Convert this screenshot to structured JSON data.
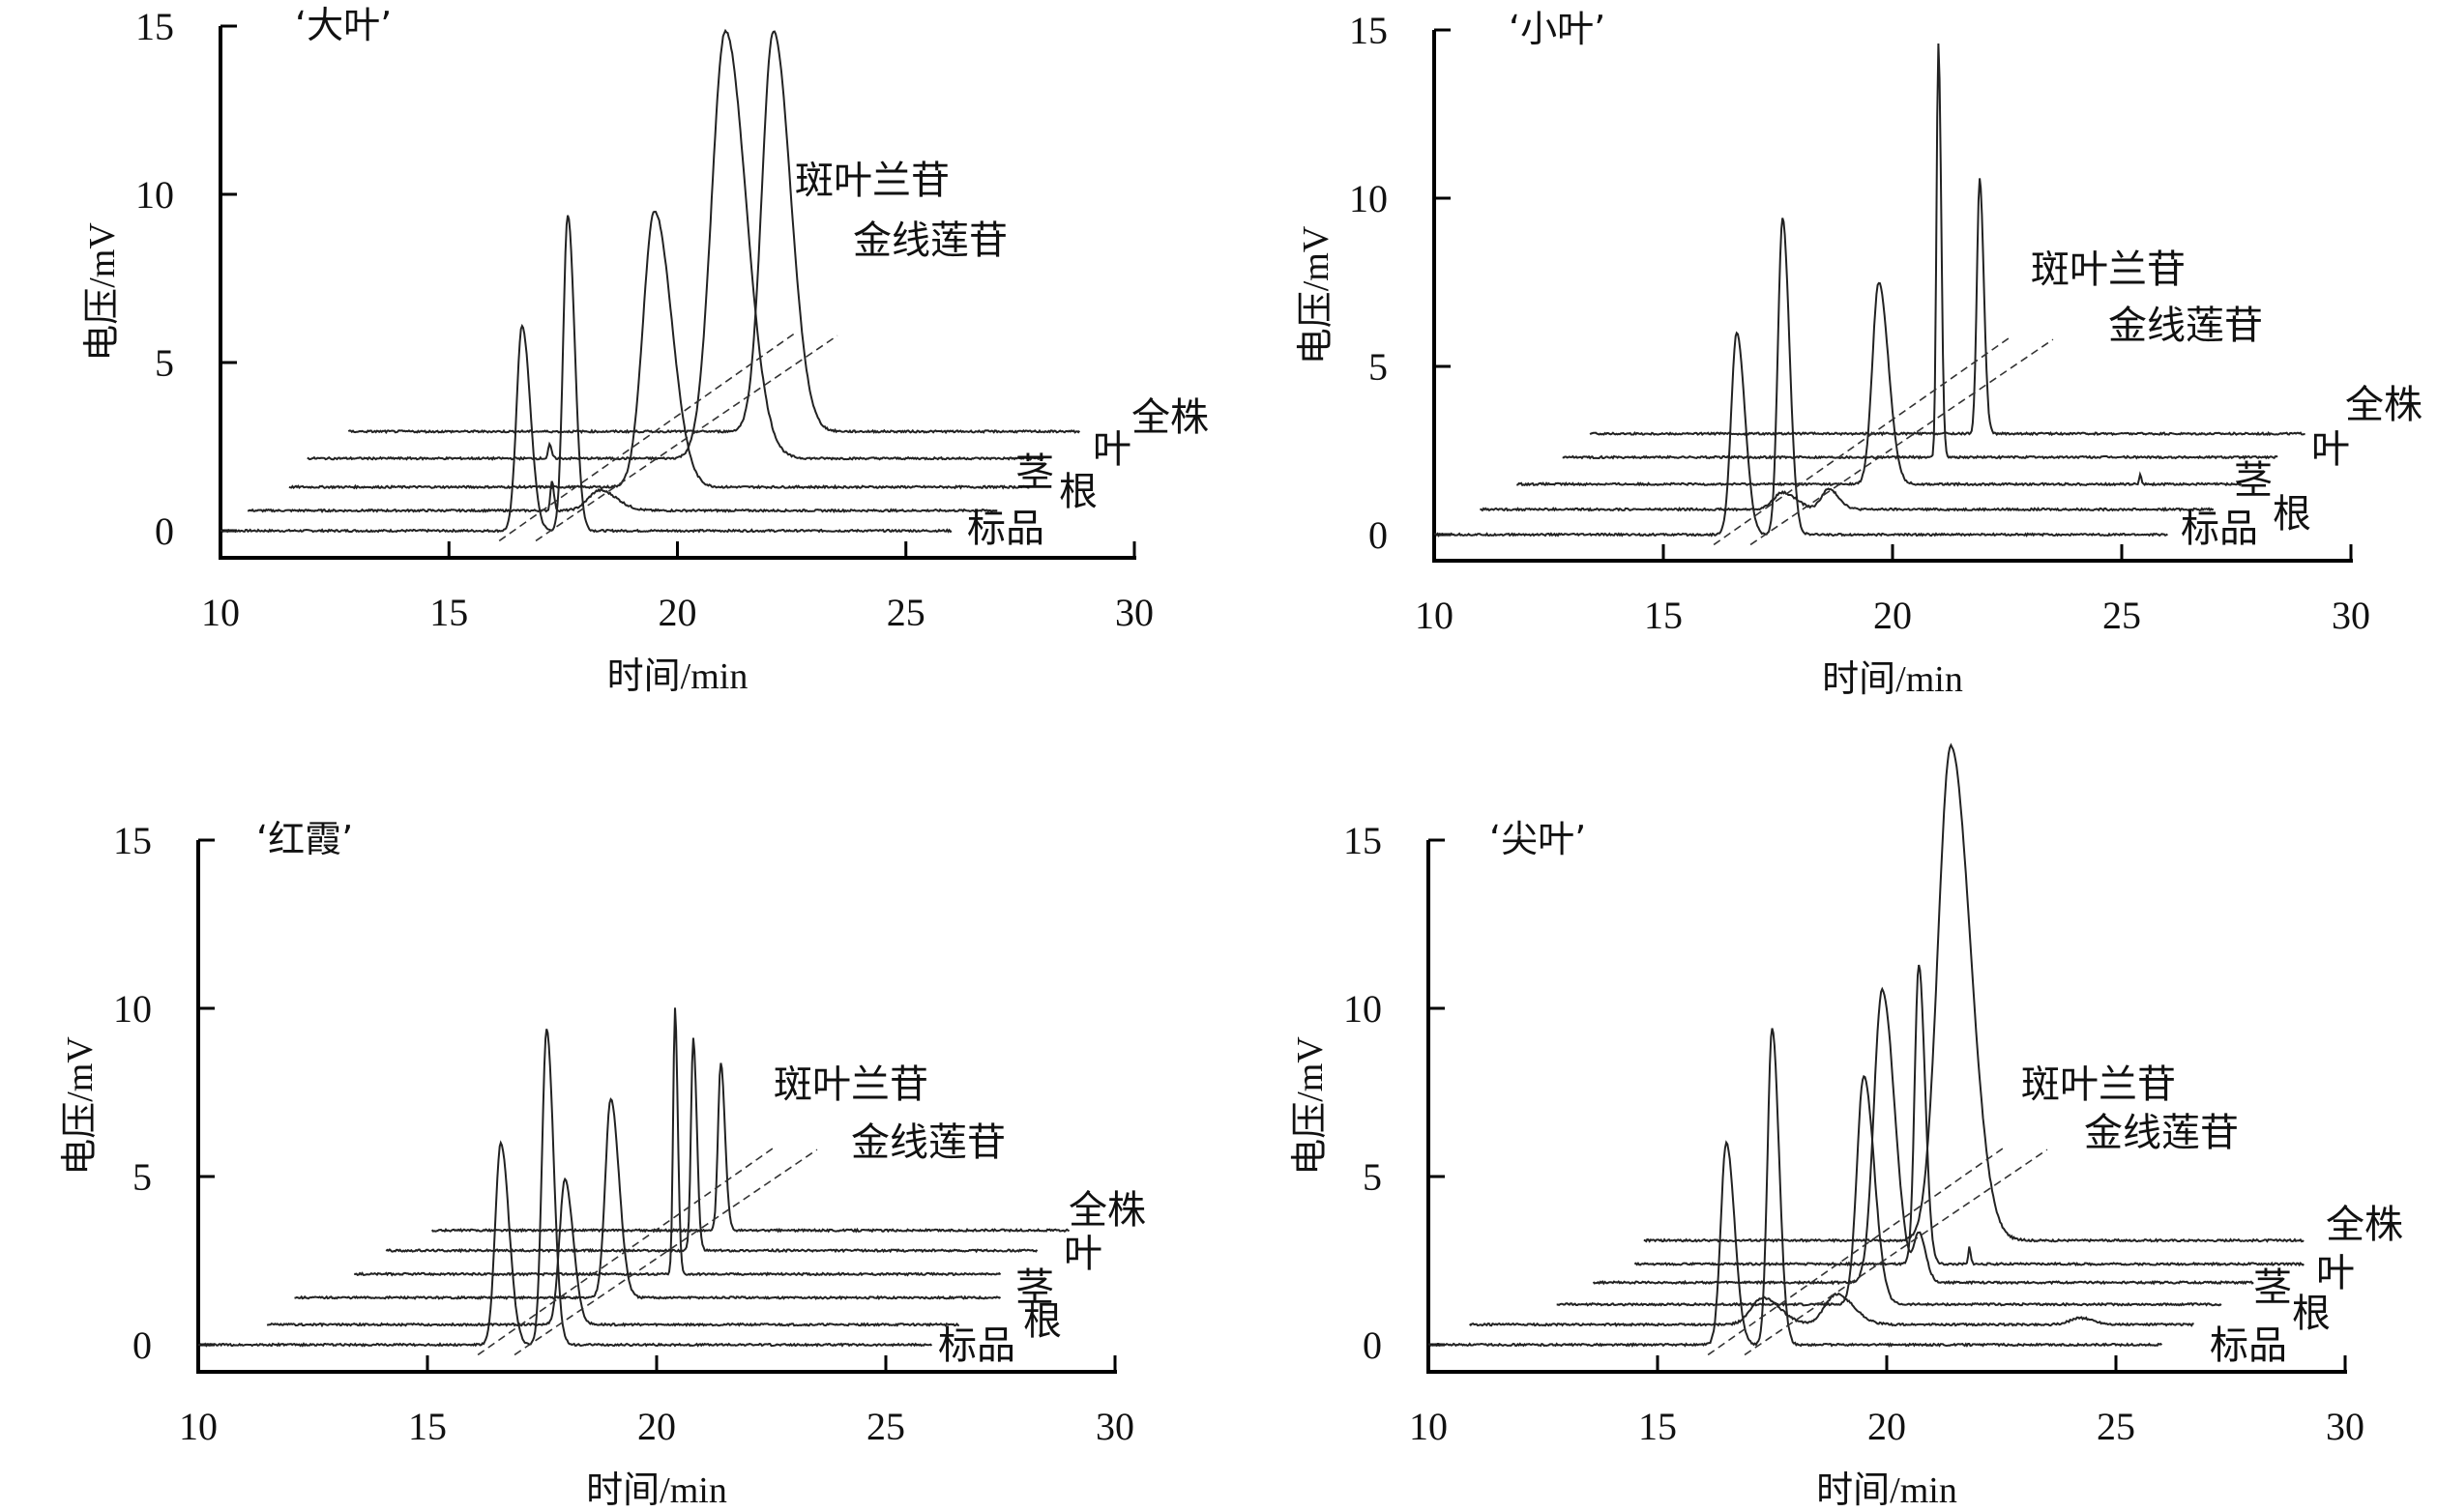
{
  "chart_data": [
    {
      "type": "line",
      "title": "‘大叶’",
      "xlabel": "时间/min",
      "ylabel": "电压/mV",
      "xlim": [
        10,
        30
      ],
      "ylim": [
        0,
        15
      ],
      "xticks": [
        "10",
        "15",
        "20",
        "25",
        "30"
      ],
      "yticks": [
        "0",
        "5",
        "10",
        "15"
      ],
      "compound_labels": [
        "斑叶兰苷",
        "金线莲苷"
      ],
      "series": [
        {
          "name": "标品",
          "offset": 0.0,
          "start": 10.0,
          "end": 26.0,
          "peaks": [
            {
              "t": 16.6,
              "h": 6.1,
              "w": 0.12
            },
            {
              "t": 17.6,
              "h": 9.4,
              "w": 0.1
            }
          ]
        },
        {
          "name": "根",
          "offset": 0.6,
          "start": 10.6,
          "end": 27.0,
          "peaks": [
            {
              "t": 17.25,
              "h": 0.9,
              "w": 0.03
            },
            {
              "t": 18.3,
              "h": 0.6,
              "w": 0.25
            }
          ]
        },
        {
          "name": "茎",
          "offset": 1.3,
          "start": 11.5,
          "end": 27.7,
          "peaks": [
            {
              "t": 19.5,
              "h": 8.2,
              "w": 0.25
            }
          ]
        },
        {
          "name": "叶",
          "offset": 2.15,
          "start": 11.9,
          "end": 28.0,
          "peaks": [
            {
              "t": 17.2,
              "h": 0.4,
              "w": 0.03
            },
            {
              "t": 21.05,
              "h": 12.7,
              "w": 0.3
            }
          ]
        },
        {
          "name": "全株",
          "offset": 2.95,
          "start": 12.8,
          "end": 28.8,
          "peaks": [
            {
              "t": 22.1,
              "h": 11.9,
              "w": 0.25
            }
          ]
        }
      ]
    },
    {
      "type": "line",
      "title": "‘小叶’",
      "xlabel": "时间/min",
      "ylabel": "电压/mV",
      "xlim": [
        10,
        30
      ],
      "ylim": [
        0,
        15
      ],
      "xticks": [
        "10",
        "15",
        "20",
        "25",
        "30"
      ],
      "yticks": [
        "0",
        "5",
        "10",
        "15"
      ],
      "compound_labels": [
        "斑叶兰苷",
        "金线莲苷"
      ],
      "series": [
        {
          "name": "标品",
          "offset": 0.0,
          "start": 10.0,
          "end": 26.0,
          "peaks": [
            {
              "t": 16.6,
              "h": 6.0,
              "w": 0.12
            },
            {
              "t": 17.6,
              "h": 9.4,
              "w": 0.1
            }
          ]
        },
        {
          "name": "根",
          "offset": 0.75,
          "start": 11.0,
          "end": 27.0,
          "peaks": [
            {
              "t": 17.6,
              "h": 0.5,
              "w": 0.2
            },
            {
              "t": 18.6,
              "h": 0.6,
              "w": 0.15
            }
          ]
        },
        {
          "name": "茎",
          "offset": 1.5,
          "start": 11.8,
          "end": 27.6,
          "peaks": [
            {
              "t": 19.7,
              "h": 6.0,
              "w": 0.14
            },
            {
              "t": 25.4,
              "h": 0.3,
              "w": 0.02
            }
          ]
        },
        {
          "name": "叶",
          "offset": 2.3,
          "start": 12.8,
          "end": 28.4,
          "peaks": [
            {
              "t": 21.0,
              "h": 12.3,
              "w": 0.04
            }
          ]
        },
        {
          "name": "全株",
          "offset": 3.0,
          "start": 13.4,
          "end": 29.0,
          "peaks": [
            {
              "t": 21.9,
              "h": 7.6,
              "w": 0.06
            }
          ]
        }
      ]
    },
    {
      "type": "line",
      "title": "‘红霞’",
      "xlabel": "时间/min",
      "ylabel": "电压/mV",
      "xlim": [
        10,
        30
      ],
      "ylim": [
        0,
        15
      ],
      "xticks": [
        "10",
        "15",
        "20",
        "25",
        "30"
      ],
      "yticks": [
        "0",
        "5",
        "10",
        "15"
      ],
      "compound_labels": [
        "斑叶兰苷",
        "金线莲苷"
      ],
      "series": [
        {
          "name": "标品",
          "offset": 0.0,
          "start": 10.0,
          "end": 26.0,
          "peaks": [
            {
              "t": 16.6,
              "h": 6.0,
              "w": 0.12
            },
            {
              "t": 17.6,
              "h": 9.4,
              "w": 0.1
            }
          ]
        },
        {
          "name": "根",
          "offset": 0.6,
          "start": 11.5,
          "end": 26.6,
          "peaks": [
            {
              "t": 18.0,
              "h": 4.3,
              "w": 0.12
            }
          ]
        },
        {
          "name": "茎",
          "offset": 1.4,
          "start": 12.1,
          "end": 27.5,
          "peaks": [
            {
              "t": 19.0,
              "h": 5.9,
              "w": 0.12
            }
          ]
        },
        {
          "name": "叶",
          "offset": 2.1,
          "start": 13.4,
          "end": 27.5,
          "peaks": [
            {
              "t": 20.4,
              "h": 7.9,
              "w": 0.04
            }
          ]
        },
        {
          "name": "全株",
          "offset": 2.8,
          "start": 14.1,
          "end": 28.3,
          "peaks": [
            {
              "t": 20.8,
              "h": 6.3,
              "w": 0.05
            }
          ]
        },
        {
          "name": "",
          "offset": 3.4,
          "start": 15.1,
          "end": 29.0,
          "peaks": [
            {
              "t": 21.4,
              "h": 5.0,
              "w": 0.06
            }
          ]
        }
      ]
    },
    {
      "type": "line",
      "title": "‘尖叶’",
      "xlabel": "时间/min",
      "ylabel": "电压/mV",
      "xlim": [
        10,
        30
      ],
      "ylim": [
        0,
        15
      ],
      "xticks": [
        "10",
        "15",
        "20",
        "25",
        "30"
      ],
      "yticks": [
        "0",
        "5",
        "10",
        "15"
      ],
      "compound_labels": [
        "斑叶兰苷",
        "金线莲苷"
      ],
      "series": [
        {
          "name": "标品",
          "offset": 0.0,
          "start": 10.0,
          "end": 26.0,
          "peaks": [
            {
              "t": 16.5,
              "h": 6.0,
              "w": 0.12
            },
            {
              "t": 17.5,
              "h": 9.4,
              "w": 0.1
            }
          ]
        },
        {
          "name": "根",
          "offset": 0.6,
          "start": 10.9,
          "end": 26.7,
          "peaks": [
            {
              "t": 17.3,
              "h": 0.8,
              "w": 0.25
            },
            {
              "t": 18.9,
              "h": 0.9,
              "w": 0.25
            },
            {
              "t": 24.2,
              "h": 0.2,
              "w": 0.2
            }
          ]
        },
        {
          "name": "茎",
          "offset": 1.2,
          "start": 12.8,
          "end": 27.3,
          "peaks": [
            {
              "t": 19.5,
              "h": 6.8,
              "w": 0.15
            }
          ]
        },
        {
          "name": "叶",
          "offset": 1.85,
          "start": 13.6,
          "end": 28.0,
          "peaks": [
            {
              "t": 19.9,
              "h": 8.7,
              "w": 0.18
            },
            {
              "t": 20.7,
              "h": 1.4,
              "w": 0.1
            }
          ]
        },
        {
          "name": "全株",
          "offset": 2.4,
          "start": 14.5,
          "end": 29.1,
          "peaks": [
            {
              "t": 20.7,
              "h": 8.9,
              "w": 0.09
            },
            {
              "t": 21.8,
              "h": 0.5,
              "w": 0.02
            }
          ]
        },
        {
          "name": "",
          "offset": 3.1,
          "start": 14.7,
          "end": 29.1,
          "peaks": [
            {
              "t": 21.4,
              "h": 14.7,
              "w": 0.28
            }
          ]
        }
      ]
    }
  ]
}
